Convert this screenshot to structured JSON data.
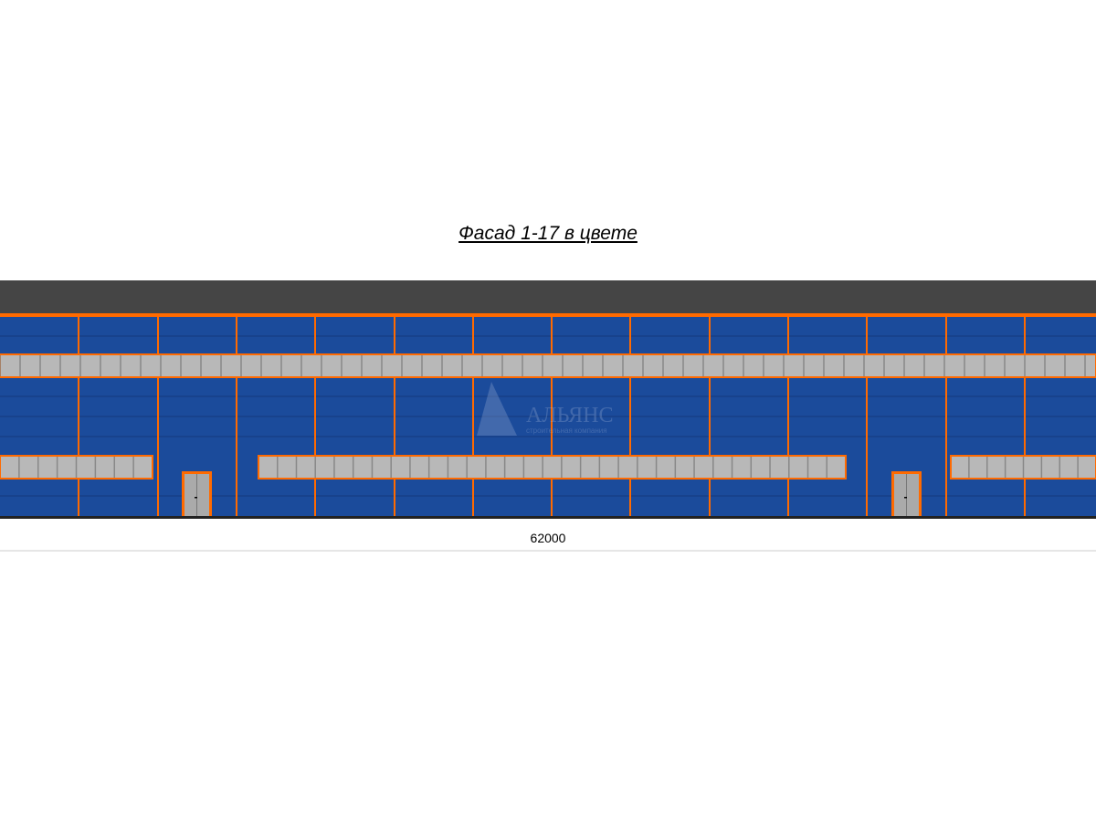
{
  "title": "Фасад 1-17 в цвете",
  "dimension_label": "62000",
  "watermark": {
    "name": "АЛЬЯНС",
    "subtitle": "строительная компания"
  },
  "colors": {
    "roof": "#454545",
    "wall": "#1b4b9b",
    "trim": "#ff6a00",
    "window": "#b8b8b8",
    "base": "#222222"
  }
}
